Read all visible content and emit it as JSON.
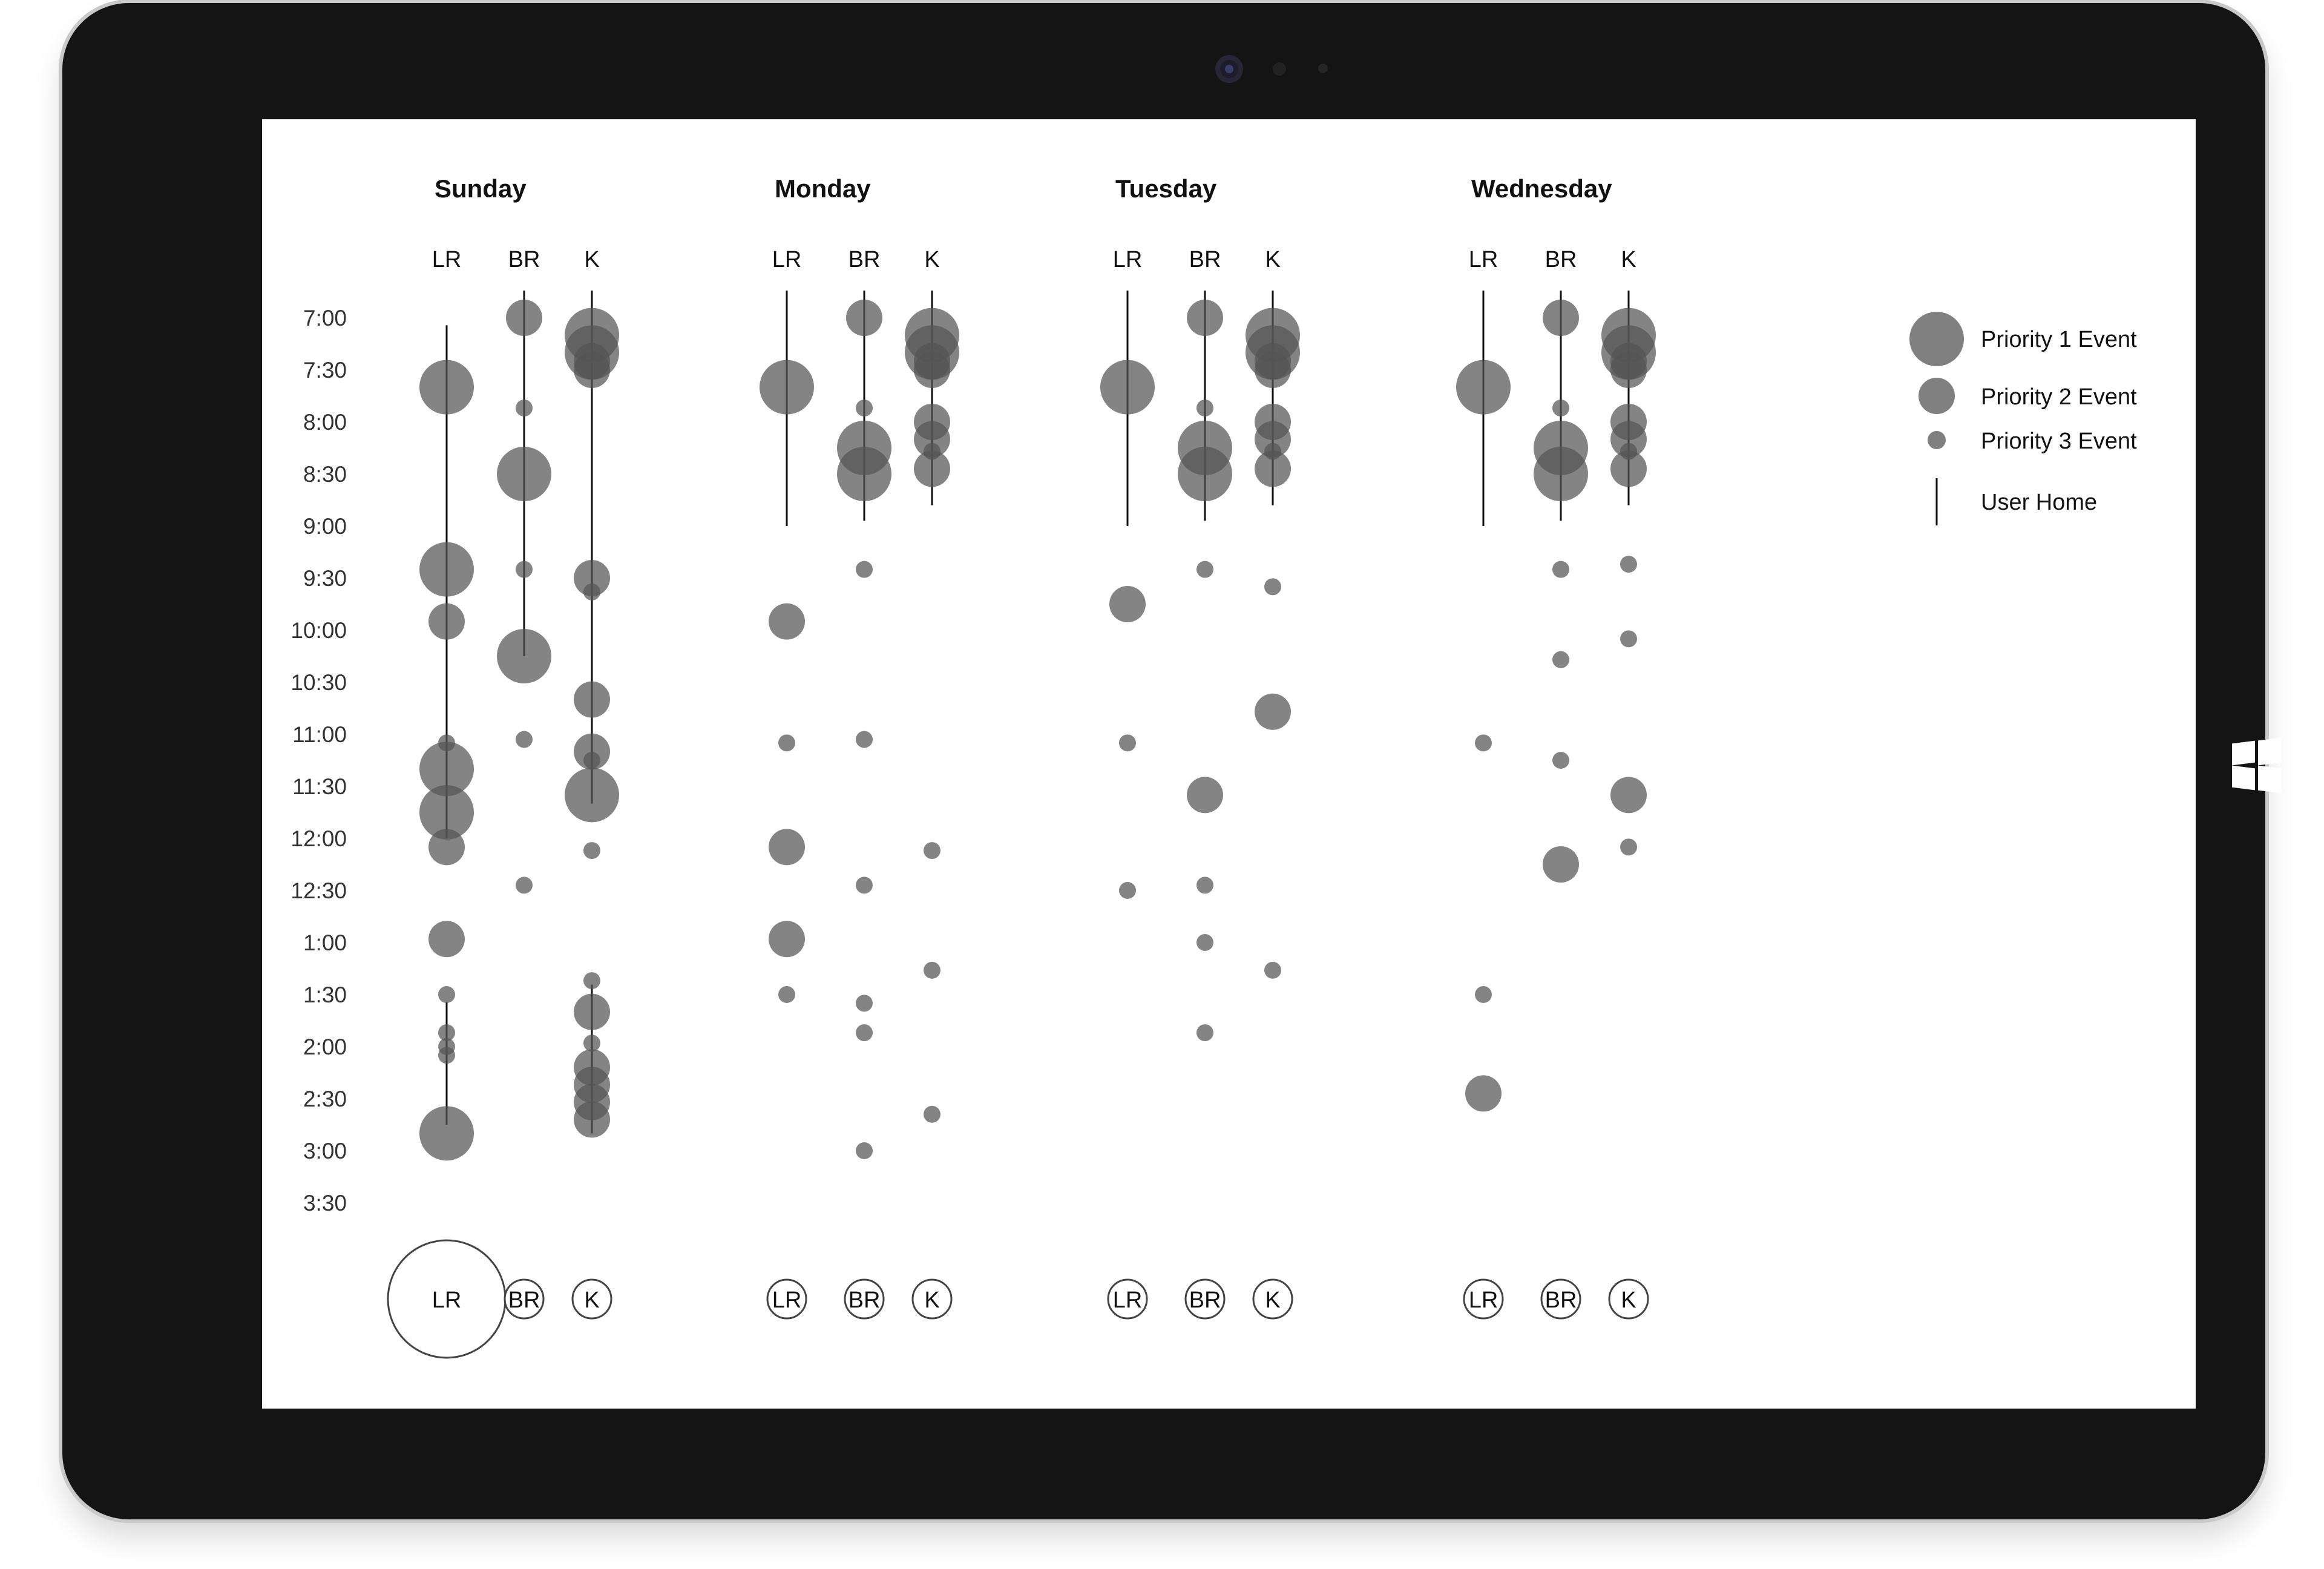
{
  "legend": {
    "priority1": "Priority 1 Event",
    "priority2": "Priority 2 Event",
    "priority3": "Priority 3 Event",
    "user_home": "User Home"
  },
  "time_labels": [
    "7:00",
    "7:30",
    "8:00",
    "8:30",
    "9:00",
    "9:30",
    "10:00",
    "10:30",
    "11:00",
    "11:30",
    "12:00",
    "12:30",
    "1:00",
    "1:30",
    "2:00",
    "2:30",
    "3:00",
    "3:30"
  ],
  "colors": {
    "dot": "#555555",
    "line": "#111111",
    "bezel": "#141414"
  },
  "chart_data": {
    "type": "scatter",
    "time_start": "7:00",
    "time_end": "3:30",
    "rooms": [
      "LR",
      "BR",
      "K"
    ],
    "days": [
      {
        "name": "Sunday",
        "selected_room": "LR",
        "rooms": [
          {
            "label": "LR",
            "home": [
              [
                "7:20",
                "12:00"
              ],
              [
                "1:50",
                "2:45"
              ]
            ],
            "events": [
              [
                "7:40",
                1
              ],
              [
                "9:25",
                1
              ],
              [
                "9:55",
                2
              ],
              [
                "11:20",
                1
              ],
              [
                "11:05",
                3
              ],
              [
                "11:45",
                1
              ],
              [
                "12:05",
                2
              ],
              [
                "12:58",
                2
              ],
              [
                "1:30",
                3
              ],
              [
                "1:52",
                3
              ],
              [
                "2:00",
                3
              ],
              [
                "2:05",
                3
              ],
              [
                "2:50",
                1
              ]
            ]
          },
          {
            "label": "BR",
            "home": [
              [
                "7:00",
                "10:15"
              ]
            ],
            "events": [
              [
                "7:00",
                2
              ],
              [
                "7:52",
                3
              ],
              [
                "8:30",
                1
              ],
              [
                "9:25",
                3
              ],
              [
                "10:15",
                1
              ],
              [
                "11:03",
                3
              ],
              [
                "12:27",
                3
              ]
            ]
          },
          {
            "label": "K",
            "home": [
              [
                "7:00",
                "11:40"
              ],
              [
                "1:40",
                "2:50"
              ]
            ],
            "events": [
              [
                "7:10",
                1
              ],
              [
                "7:20",
                1
              ],
              [
                "7:25",
                2
              ],
              [
                "7:30",
                2
              ],
              [
                "9:30",
                2
              ],
              [
                "9:38",
                3
              ],
              [
                "10:40",
                2
              ],
              [
                "11:10",
                2
              ],
              [
                "11:15",
                3
              ],
              [
                "11:35",
                1
              ],
              [
                "12:07",
                3
              ],
              [
                "1:22",
                3
              ],
              [
                "1:40",
                2
              ],
              [
                "1:58",
                3
              ],
              [
                "2:12",
                2
              ],
              [
                "2:22",
                2
              ],
              [
                "2:32",
                2
              ],
              [
                "2:42",
                2
              ]
            ]
          }
        ]
      },
      {
        "name": "Monday",
        "selected_room": "",
        "rooms": [
          {
            "label": "LR",
            "home": [
              [
                "7:00",
                "9:00"
              ]
            ],
            "events": [
              [
                "7:40",
                1
              ],
              [
                "9:55",
                2
              ],
              [
                "11:05",
                3
              ],
              [
                "12:05",
                2
              ],
              [
                "12:58",
                2
              ],
              [
                "1:30",
                3
              ]
            ]
          },
          {
            "label": "BR",
            "home": [
              [
                "7:00",
                "8:57"
              ]
            ],
            "events": [
              [
                "7:00",
                2
              ],
              [
                "7:52",
                3
              ],
              [
                "8:15",
                1
              ],
              [
                "8:30",
                1
              ],
              [
                "9:25",
                3
              ],
              [
                "11:03",
                3
              ],
              [
                "12:27",
                3
              ],
              [
                "1:35",
                3
              ],
              [
                "1:52",
                3
              ],
              [
                "3:00",
                3
              ]
            ]
          },
          {
            "label": "K",
            "home": [
              [
                "7:00",
                "8:48"
              ]
            ],
            "events": [
              [
                "7:10",
                1
              ],
              [
                "7:20",
                1
              ],
              [
                "7:25",
                2
              ],
              [
                "7:30",
                2
              ],
              [
                "8:00",
                2
              ],
              [
                "8:10",
                2
              ],
              [
                "8:17",
                3
              ],
              [
                "8:27",
                2
              ],
              [
                "12:07",
                3
              ],
              [
                "1:16",
                3
              ],
              [
                "2:39",
                3
              ]
            ]
          }
        ]
      },
      {
        "name": "Tuesday",
        "selected_room": "",
        "rooms": [
          {
            "label": "LR",
            "home": [
              [
                "7:00",
                "9:00"
              ]
            ],
            "events": [
              [
                "7:40",
                1
              ],
              [
                "9:45",
                2
              ],
              [
                "11:05",
                3
              ],
              [
                "12:30",
                3
              ]
            ]
          },
          {
            "label": "BR",
            "home": [
              [
                "7:00",
                "8:57"
              ]
            ],
            "events": [
              [
                "7:00",
                2
              ],
              [
                "7:52",
                3
              ],
              [
                "8:15",
                1
              ],
              [
                "8:30",
                1
              ],
              [
                "9:25",
                3
              ],
              [
                "11:35",
                2
              ],
              [
                "12:27",
                3
              ],
              [
                "1:00",
                3
              ],
              [
                "1:52",
                3
              ]
            ]
          },
          {
            "label": "K",
            "home": [
              [
                "7:00",
                "8:48"
              ]
            ],
            "events": [
              [
                "7:10",
                1
              ],
              [
                "7:20",
                1
              ],
              [
                "7:25",
                2
              ],
              [
                "7:30",
                2
              ],
              [
                "8:00",
                2
              ],
              [
                "8:10",
                2
              ],
              [
                "8:17",
                3
              ],
              [
                "8:27",
                2
              ],
              [
                "9:35",
                3
              ],
              [
                "10:47",
                2
              ],
              [
                "1:16",
                3
              ]
            ]
          }
        ]
      },
      {
        "name": "Wednesday",
        "selected_room": "",
        "rooms": [
          {
            "label": "LR",
            "home": [
              [
                "7:00",
                "9:00"
              ]
            ],
            "events": [
              [
                "7:40",
                1
              ],
              [
                "11:05",
                3
              ],
              [
                "1:30",
                3
              ],
              [
                "2:27",
                2
              ]
            ]
          },
          {
            "label": "BR",
            "home": [
              [
                "7:00",
                "8:57"
              ]
            ],
            "events": [
              [
                "7:00",
                2
              ],
              [
                "7:52",
                3
              ],
              [
                "8:15",
                1
              ],
              [
                "8:30",
                1
              ],
              [
                "9:25",
                3
              ],
              [
                "10:17",
                3
              ],
              [
                "11:15",
                3
              ],
              [
                "12:15",
                2
              ]
            ]
          },
          {
            "label": "K",
            "home": [
              [
                "7:00",
                "8:48"
              ]
            ],
            "events": [
              [
                "7:10",
                1
              ],
              [
                "7:20",
                1
              ],
              [
                "7:25",
                2
              ],
              [
                "7:30",
                2
              ],
              [
                "8:00",
                2
              ],
              [
                "8:10",
                2
              ],
              [
                "8:17",
                3
              ],
              [
                "8:27",
                2
              ],
              [
                "9:22",
                3
              ],
              [
                "10:05",
                3
              ],
              [
                "11:35",
                2
              ],
              [
                "12:05",
                3
              ]
            ]
          }
        ]
      }
    ]
  }
}
